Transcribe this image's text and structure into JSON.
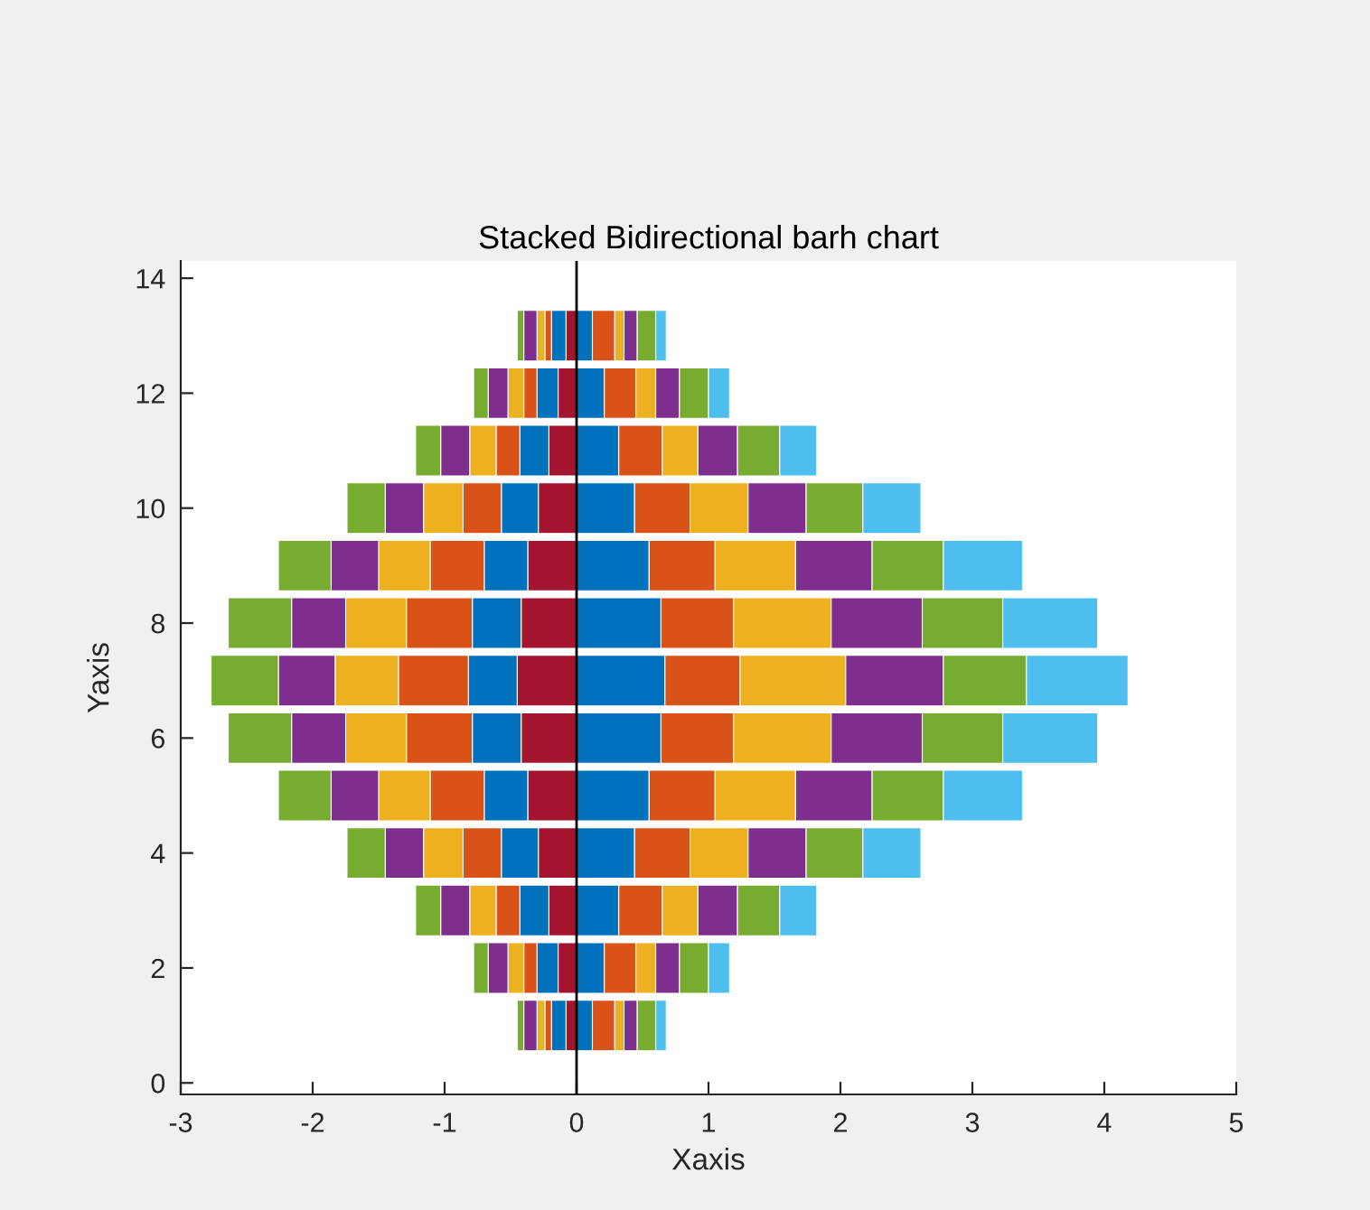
{
  "chart_data": {
    "type": "bar",
    "title": "Stacked Bidirectional barh chart",
    "xlabel": "Xaxis",
    "ylabel": "Yaxis",
    "orientation": "horizontal",
    "stacked": true,
    "x": [
      1,
      2,
      3,
      4,
      5,
      6,
      7,
      8,
      9,
      10,
      11,
      12,
      13
    ],
    "xlim": [
      -3,
      5
    ],
    "xticks": [
      -3,
      -2,
      -1,
      0,
      1,
      2,
      3,
      4,
      5
    ],
    "ylim": [
      -0.2,
      14.3
    ],
    "yticks": [
      0,
      2,
      4,
      6,
      8,
      10,
      12,
      14
    ],
    "ref_lines": [
      {
        "axis": "x",
        "value": 0,
        "color": "#000000"
      }
    ],
    "series": [
      {
        "color": "#0072bd",
        "values": [
          0.12,
          0.21,
          0.32,
          0.44,
          0.55,
          0.64,
          0.67,
          0.64,
          0.55,
          0.44,
          0.32,
          0.21,
          0.12
        ]
      },
      {
        "color": "#d95319",
        "values": [
          0.17,
          0.24,
          0.33,
          0.42,
          0.5,
          0.55,
          0.57,
          0.55,
          0.5,
          0.42,
          0.33,
          0.24,
          0.17
        ]
      },
      {
        "color": "#edb120",
        "values": [
          0.07,
          0.15,
          0.27,
          0.44,
          0.61,
          0.74,
          0.8,
          0.74,
          0.61,
          0.44,
          0.27,
          0.15,
          0.07
        ]
      },
      {
        "color": "#7e2f8e",
        "values": [
          0.1,
          0.18,
          0.3,
          0.44,
          0.58,
          0.69,
          0.74,
          0.69,
          0.58,
          0.44,
          0.3,
          0.18,
          0.1
        ]
      },
      {
        "color": "#77ac30",
        "values": [
          0.14,
          0.22,
          0.32,
          0.43,
          0.54,
          0.61,
          0.63,
          0.61,
          0.54,
          0.43,
          0.32,
          0.22,
          0.14
        ]
      },
      {
        "color": "#4dbeee",
        "values": [
          0.08,
          0.16,
          0.28,
          0.44,
          0.6,
          0.72,
          0.77,
          0.72,
          0.6,
          0.44,
          0.28,
          0.16,
          0.08
        ]
      },
      {
        "color": "#a2142f",
        "values": [
          -0.08,
          -0.14,
          -0.21,
          -0.29,
          -0.37,
          -0.42,
          -0.45,
          -0.42,
          -0.37,
          -0.29,
          -0.21,
          -0.14,
          -0.08
        ]
      },
      {
        "color": "#0072bd",
        "values": [
          -0.11,
          -0.16,
          -0.22,
          -0.28,
          -0.33,
          -0.37,
          -0.37,
          -0.37,
          -0.33,
          -0.28,
          -0.22,
          -0.16,
          -0.11
        ]
      },
      {
        "color": "#d95319",
        "values": [
          -0.05,
          -0.1,
          -0.18,
          -0.29,
          -0.41,
          -0.5,
          -0.53,
          -0.5,
          -0.41,
          -0.29,
          -0.18,
          -0.1,
          -0.05
        ]
      },
      {
        "color": "#edb120",
        "values": [
          -0.06,
          -0.12,
          -0.2,
          -0.3,
          -0.39,
          -0.46,
          -0.48,
          -0.46,
          -0.39,
          -0.3,
          -0.2,
          -0.12,
          -0.06
        ]
      },
      {
        "color": "#7e2f8e",
        "values": [
          -0.1,
          -0.15,
          -0.22,
          -0.29,
          -0.36,
          -0.41,
          -0.43,
          -0.41,
          -0.36,
          -0.29,
          -0.22,
          -0.15,
          -0.1
        ]
      },
      {
        "color": "#77ac30",
        "values": [
          -0.05,
          -0.11,
          -0.19,
          -0.29,
          -0.4,
          -0.48,
          -0.51,
          -0.48,
          -0.4,
          -0.29,
          -0.19,
          -0.11,
          -0.05
        ]
      }
    ]
  }
}
